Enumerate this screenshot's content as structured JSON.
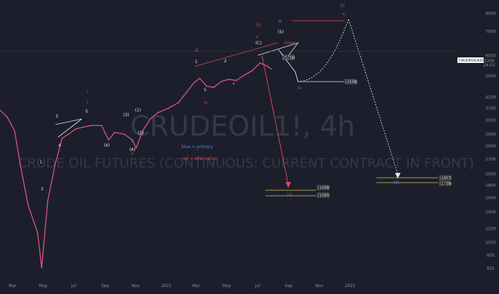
{
  "chart_data": {
    "type": "line",
    "title": "CRUDEOIL1!, 4h",
    "subtitle": "CRUDE OIL FUTURES (CONTINUOUS: CURRENT CONTRACT IN FRONT)",
    "y_scale": "log",
    "ylim": [
      780,
      10000
    ],
    "xlabel": "",
    "ylabel": "",
    "y_ticks": [
      "9000",
      "7600",
      "6050",
      "5000",
      "4100",
      "3700",
      "3300",
      "2900",
      "2600",
      "2300",
      "2000",
      "1800",
      "1600",
      "1400",
      "1200",
      "1055",
      "935",
      "825"
    ],
    "x_ticks": [
      "Mar",
      "May",
      "Jul",
      "Sep",
      "Nov",
      "2021",
      "Mar",
      "May",
      "Jul",
      "Sep",
      "Nov",
      "2022"
    ],
    "price_label": "CRUDEOILN2021",
    "price_value": "5300",
    "price_time": "24:02",
    "series": [
      {
        "color": "#e0528a",
        "x": [
          "2020-02-01",
          "2020-02-20",
          "2020-03-05",
          "2020-03-20",
          "2020-04-01",
          "2020-04-20",
          "2020-04-28",
          "2020-05-10",
          "2020-05-25",
          "2020-06-08",
          "2020-06-20",
          "2020-07-05",
          "2020-07-20",
          "2020-08-05",
          "2020-08-25",
          "2020-09-08",
          "2020-09-20",
          "2020-10-10",
          "2020-10-25",
          "2020-11-02",
          "2020-11-15",
          "2020-11-30",
          "2020-12-15",
          "2021-01-05",
          "2021-01-25",
          "2021-02-10",
          "2021-02-25",
          "2021-03-08",
          "2021-03-22",
          "2021-04-05",
          "2021-04-20",
          "2021-05-05",
          "2021-05-20",
          "2021-06-05",
          "2021-06-20",
          "2021-07-06",
          "2021-07-20",
          "2021-07-28"
        ],
        "y": [
          3700,
          3400,
          3000,
          2000,
          1500,
          1150,
          830,
          1550,
          2200,
          2800,
          2900,
          3050,
          3100,
          3150,
          3150,
          2750,
          2950,
          2900,
          2750,
          2550,
          3000,
          3350,
          3550,
          3700,
          3900,
          4300,
          4700,
          4900,
          4550,
          4500,
          4750,
          4850,
          4800,
          5050,
          5250,
          5650,
          5500,
          5350
        ]
      }
    ],
    "wave_labels": {
      "blue_primary": [
        "(i)",
        "v",
        "iii",
        "(ii)",
        "iv",
        "i",
        "ii"
      ],
      "red_alternative": [
        "(i)",
        "iii",
        "v",
        "iv",
        "(ii)",
        "i",
        "ii"
      ],
      "white": [
        "3",
        "5",
        "4",
        "1",
        "2",
        "(3)",
        "(4)",
        "(5)",
        "(1)",
        "(2)",
        "(A)",
        "(C)",
        "5",
        "4",
        "2",
        "1"
      ]
    },
    "levels": [
      {
        "label": "(6344)",
        "value": 6344
      },
      {
        "label": "(5736)",
        "value": 5736
      },
      {
        "label": "(4348)",
        "value": 4348
      },
      {
        "label": "(1867)",
        "value": 1867
      },
      {
        "label": "(1738)",
        "value": 1738
      },
      {
        "label": "(1688)",
        "value": 1688
      },
      {
        "label": "(1585)",
        "value": 1585
      }
    ],
    "legend": [
      "blue = primary",
      "red = alternative"
    ]
  },
  "colors": {
    "background": "#1c1f2b",
    "price": "#e0528a",
    "blue_wave": "#4d86e6",
    "red_wave": "#e0435c",
    "level_yellow": "#d8c85a",
    "white": "#e8e8ee",
    "axis_text": "#8a8f9e"
  }
}
